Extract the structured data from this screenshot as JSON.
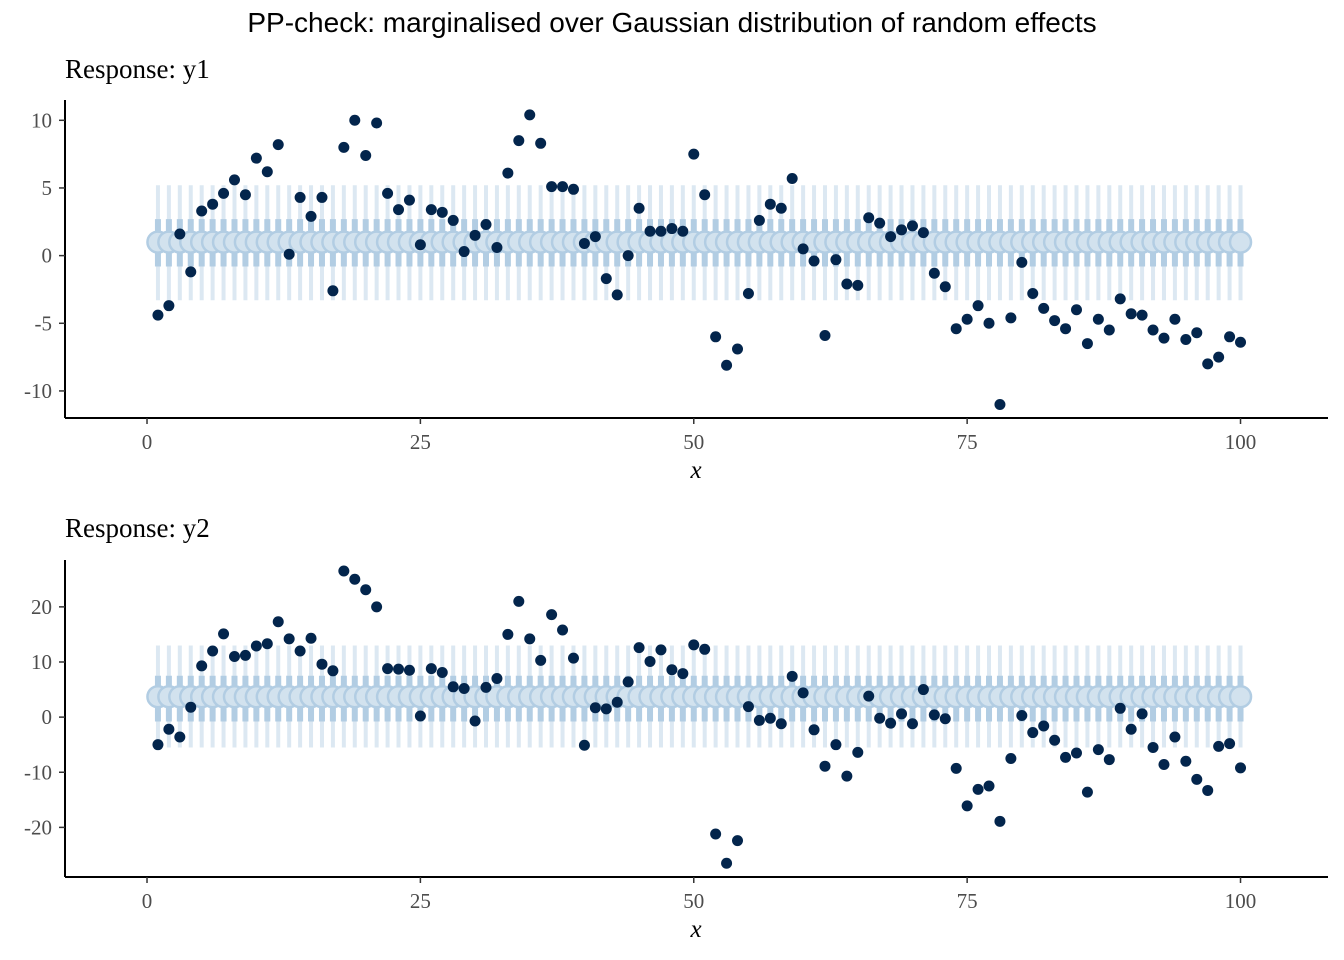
{
  "title": "PP-check: marginalised over Gaussian distribution of random effects",
  "colors": {
    "observed": "#03254c",
    "interval_outer": "#dce8f2",
    "interval_inner": "#b2cde3",
    "point_fill": "#d2e2ee",
    "point_edge": "#b2cde3"
  },
  "chart_data": [
    {
      "type": "scatter",
      "title": "Response: y1",
      "xlabel": "x",
      "ylabel": "",
      "xlim": [
        -7.5,
        108
      ],
      "ylim": [
        -12,
        11.5
      ],
      "xticks": [
        0,
        25,
        50,
        75,
        100
      ],
      "yticks": [
        -10,
        -5,
        0,
        5,
        10
      ],
      "xtick_labels": [
        "0",
        "25",
        "50",
        "75",
        "100"
      ],
      "ytick_labels": [
        "-10",
        "-5",
        "0",
        "5",
        "10"
      ],
      "grid": false,
      "legend": "none",
      "predictive": {
        "median": 1.0,
        "inner": [
          -0.8,
          2.7
        ],
        "outer": [
          -3.3,
          5.2
        ]
      },
      "x": [
        1,
        2,
        3,
        4,
        5,
        6,
        7,
        8,
        9,
        10,
        11,
        12,
        13,
        14,
        15,
        16,
        17,
        18,
        19,
        20,
        21,
        22,
        23,
        24,
        25,
        26,
        27,
        28,
        29,
        30,
        31,
        32,
        33,
        34,
        35,
        36,
        37,
        38,
        39,
        40,
        41,
        42,
        43,
        44,
        45,
        46,
        47,
        48,
        49,
        50,
        51,
        52,
        53,
        54,
        55,
        56,
        57,
        58,
        59,
        60,
        61,
        62,
        63,
        64,
        65,
        66,
        67,
        68,
        69,
        70,
        71,
        72,
        73,
        74,
        75,
        76,
        77,
        78,
        79,
        80,
        81,
        82,
        83,
        84,
        85,
        86,
        87,
        88,
        89,
        90,
        91,
        92,
        93,
        94,
        95,
        96,
        97,
        98,
        99,
        100
      ],
      "y": [
        -4.4,
        -3.7,
        1.6,
        -1.2,
        3.3,
        3.8,
        4.6,
        5.6,
        4.5,
        7.2,
        6.2,
        8.2,
        0.1,
        4.3,
        2.9,
        4.3,
        -2.6,
        8.0,
        10.0,
        7.4,
        9.8,
        4.6,
        3.4,
        4.1,
        0.8,
        3.4,
        3.2,
        2.6,
        0.3,
        1.5,
        2.3,
        0.6,
        6.1,
        8.5,
        10.4,
        8.3,
        5.1,
        5.1,
        4.9,
        0.9,
        1.4,
        -1.7,
        -2.9,
        0.0,
        3.5,
        1.8,
        1.8,
        2.0,
        1.8,
        7.5,
        4.5,
        -6.0,
        -8.1,
        -6.9,
        -2.8,
        2.6,
        3.8,
        3.5,
        5.7,
        0.5,
        -0.4,
        -5.9,
        -0.3,
        -2.1,
        -2.2,
        2.8,
        2.4,
        1.4,
        1.9,
        2.2,
        1.7,
        -1.3,
        -2.3,
        -5.4,
        -4.7,
        -3.7,
        -5.0,
        -11.0,
        -4.6,
        -0.5,
        -2.8,
        -3.9,
        -4.8,
        -5.4,
        -4.0,
        -6.5,
        -4.7,
        -5.5,
        -3.2,
        -4.3,
        -4.4,
        -5.5,
        -6.1,
        -4.7,
        -6.2,
        -5.7,
        -8.0,
        -7.5,
        -6.0,
        -6.4
      ]
    },
    {
      "type": "scatter",
      "title": "Response: y2",
      "xlabel": "x",
      "ylabel": "",
      "xlim": [
        -7.5,
        108
      ],
      "ylim": [
        -29,
        28.5
      ],
      "xticks": [
        0,
        25,
        50,
        75,
        100
      ],
      "yticks": [
        -20,
        -10,
        0,
        10,
        20
      ],
      "xtick_labels": [
        "0",
        "25",
        "50",
        "75",
        "100"
      ],
      "ytick_labels": [
        "-20",
        "-10",
        "0",
        "10",
        "20"
      ],
      "grid": false,
      "legend": "none",
      "predictive": {
        "median": 3.7,
        "inner": [
          -0.8,
          7.5
        ],
        "outer": [
          -5.5,
          13.0
        ]
      },
      "x": [
        1,
        2,
        3,
        4,
        5,
        6,
        7,
        8,
        9,
        10,
        11,
        12,
        13,
        14,
        15,
        16,
        17,
        18,
        19,
        20,
        21,
        22,
        23,
        24,
        25,
        26,
        27,
        28,
        29,
        30,
        31,
        32,
        33,
        34,
        35,
        36,
        37,
        38,
        39,
        40,
        41,
        42,
        43,
        44,
        45,
        46,
        47,
        48,
        49,
        50,
        51,
        52,
        53,
        54,
        55,
        56,
        57,
        58,
        59,
        60,
        61,
        62,
        63,
        64,
        65,
        66,
        67,
        68,
        69,
        70,
        71,
        72,
        73,
        74,
        75,
        76,
        77,
        78,
        79,
        80,
        81,
        82,
        83,
        84,
        85,
        86,
        87,
        88,
        89,
        90,
        91,
        92,
        93,
        94,
        95,
        96,
        97,
        98,
        99,
        100
      ],
      "y": [
        -5.0,
        -2.2,
        -3.6,
        1.8,
        9.3,
        12.0,
        15.1,
        11.0,
        11.2,
        12.9,
        13.3,
        17.3,
        14.2,
        12.0,
        14.3,
        9.6,
        8.4,
        26.5,
        25.0,
        23.1,
        20.0,
        8.8,
        8.7,
        8.5,
        0.2,
        8.8,
        8.1,
        5.5,
        5.2,
        -0.7,
        5.4,
        7.0,
        15.0,
        21.0,
        14.2,
        10.3,
        18.6,
        15.8,
        10.7,
        -5.1,
        1.7,
        1.5,
        2.7,
        6.4,
        12.6,
        10.1,
        12.2,
        8.6,
        7.9,
        13.1,
        12.3,
        -21.2,
        -26.5,
        -22.4,
        1.9,
        -0.6,
        -0.2,
        -1.2,
        7.4,
        4.4,
        -2.3,
        -8.9,
        -5.0,
        -10.7,
        -6.4,
        3.8,
        -0.2,
        -1.1,
        0.6,
        -1.2,
        5.0,
        0.4,
        -0.3,
        -9.3,
        -16.1,
        -13.1,
        -12.5,
        -18.9,
        -7.5,
        0.3,
        -2.8,
        -1.6,
        -4.2,
        -7.3,
        -6.5,
        -13.6,
        -5.9,
        -7.7,
        1.6,
        -2.2,
        0.6,
        -5.5,
        -8.6,
        -3.6,
        -8.0,
        -11.3,
        -13.3,
        -5.3,
        -4.8,
        -9.2
      ]
    }
  ]
}
